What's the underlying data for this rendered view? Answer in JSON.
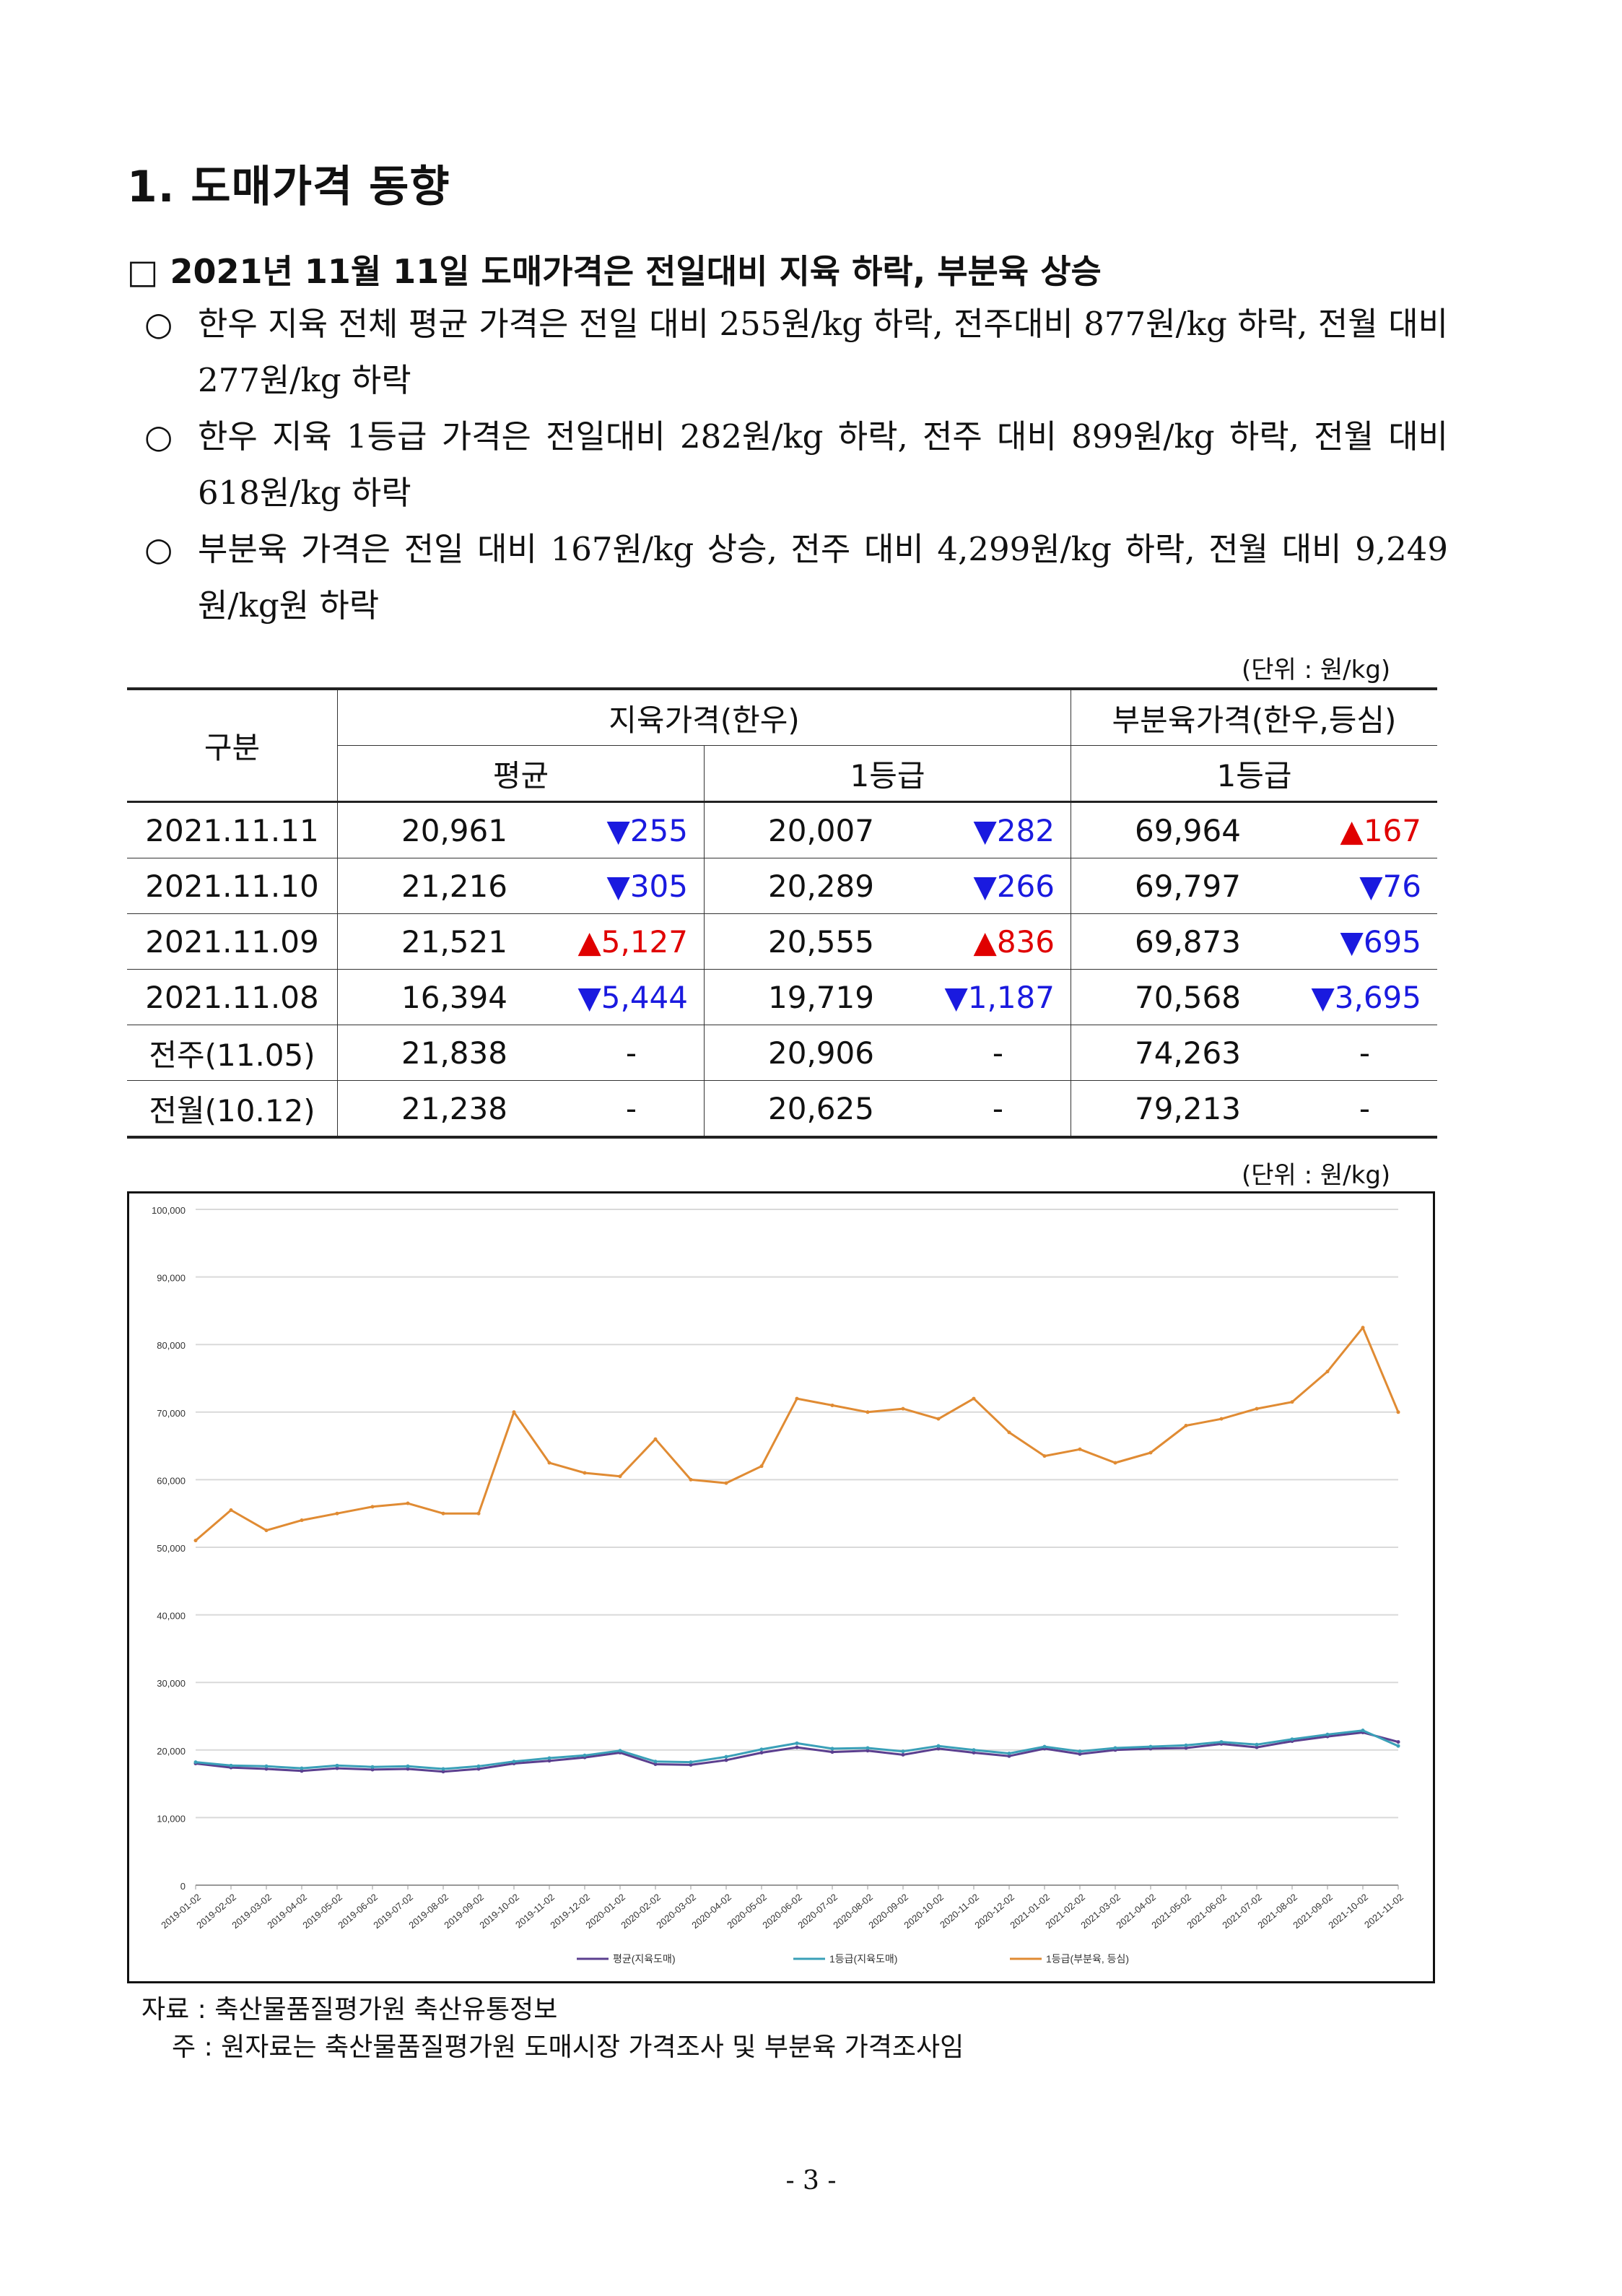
{
  "title": "1. 도매가격 동향",
  "headline": "□ 2021년 11월 11일 도매가격은 전일대비 지육 하락, 부분육 상승",
  "bullets": [
    {
      "mark": "○",
      "text": "한우 지육 전체 평균 가격은 전일 대비 255원/kg 하락, 전주대비 877원/kg 하락, 전월 대비 277원/kg 하락"
    },
    {
      "mark": "○",
      "text": "한우 지육 1등급 가격은 전일대비 282원/kg 하락, 전주 대비 899원/kg 하락, 전월 대비 618원/kg 하락"
    },
    {
      "mark": "○",
      "text": "부분육 가격은 전일 대비 167원/kg 상승, 전주 대비 4,299원/kg 하락, 전월 대비 9,249원/kg원 하락"
    }
  ],
  "table": {
    "unit": "(단위 : 원/kg)",
    "col_group_label": "구분",
    "group1": "지육가격(한우)",
    "group2": "부분육가격(한우,등심)",
    "sub1": "평균",
    "sub2": "1등급",
    "sub3": "1등급",
    "rows": [
      {
        "label": "2021.11.11",
        "avg": "20,961",
        "avg_chg": "▼255",
        "avg_dir": "down",
        "g1": "20,007",
        "g1_chg": "▼282",
        "g1_dir": "down",
        "part": "69,964",
        "part_chg": "▲167",
        "part_dir": "up"
      },
      {
        "label": "2021.11.10",
        "avg": "21,216",
        "avg_chg": "▼305",
        "avg_dir": "down",
        "g1": "20,289",
        "g1_chg": "▼266",
        "g1_dir": "down",
        "part": "69,797",
        "part_chg": "▼76",
        "part_dir": "down"
      },
      {
        "label": "2021.11.09",
        "avg": "21,521",
        "avg_chg": "▲5,127",
        "avg_dir": "up",
        "g1": "20,555",
        "g1_chg": "▲836",
        "g1_dir": "up",
        "part": "69,873",
        "part_chg": "▼695",
        "part_dir": "down"
      },
      {
        "label": "2021.11.08",
        "avg": "16,394",
        "avg_chg": "▼5,444",
        "avg_dir": "down",
        "g1": "19,719",
        "g1_chg": "▼1,187",
        "g1_dir": "down",
        "part": "70,568",
        "part_chg": "▼3,695",
        "part_dir": "down"
      },
      {
        "label": "전주(11.05)",
        "avg": "21,838",
        "avg_chg": "-",
        "avg_dir": "none",
        "g1": "20,906",
        "g1_chg": "-",
        "g1_dir": "none",
        "part": "74,263",
        "part_chg": "-",
        "part_dir": "none"
      },
      {
        "label": "전월(10.12)",
        "avg": "21,238",
        "avg_chg": "-",
        "avg_dir": "none",
        "g1": "20,625",
        "g1_chg": "-",
        "g1_dir": "none",
        "part": "79,213",
        "part_chg": "-",
        "part_dir": "none"
      }
    ]
  },
  "chart_unit": "(단위 : 원/kg)",
  "chart_data": {
    "type": "line",
    "title": "",
    "xlabel": "",
    "ylabel": "",
    "ylim": [
      0,
      100000
    ],
    "yticks": [
      "0",
      "10,000",
      "20,000",
      "30,000",
      "40,000",
      "50,000",
      "60,000",
      "70,000",
      "80,000",
      "90,000",
      "100,000"
    ],
    "grid": true,
    "legend": "bottom",
    "x": [
      "2019-01-02",
      "2019-02-02",
      "2019-03-02",
      "2019-04-02",
      "2019-05-02",
      "2019-06-02",
      "2019-07-02",
      "2019-08-02",
      "2019-09-02",
      "2019-10-02",
      "2019-11-02",
      "2019-12-02",
      "2020-01-02",
      "2020-02-02",
      "2020-03-02",
      "2020-04-02",
      "2020-05-02",
      "2020-06-02",
      "2020-07-02",
      "2020-08-02",
      "2020-09-02",
      "2020-10-02",
      "2020-11-02",
      "2020-12-02",
      "2021-01-02",
      "2021-02-02",
      "2021-03-02",
      "2021-04-02",
      "2021-05-02",
      "2021-06-02",
      "2021-07-02",
      "2021-08-02",
      "2021-09-02",
      "2021-10-02",
      "2021-11-02"
    ],
    "series": [
      {
        "name": "평균(지육도매)",
        "color": "#5b3f8f",
        "values": [
          18000,
          17400,
          17200,
          16900,
          17300,
          17100,
          17200,
          16800,
          17200,
          18000,
          18400,
          18900,
          19600,
          17900,
          17800,
          18500,
          19600,
          20400,
          19700,
          19900,
          19300,
          20200,
          19600,
          19100,
          20200,
          19400,
          20000,
          20200,
          20300,
          20900,
          20400,
          21300,
          22000,
          22600,
          21200
        ]
      },
      {
        "name": "1등급(지육도매)",
        "color": "#3aa0b8",
        "values": [
          18200,
          17700,
          17600,
          17300,
          17700,
          17500,
          17600,
          17200,
          17600,
          18300,
          18800,
          19200,
          19900,
          18300,
          18200,
          19000,
          20100,
          21000,
          20200,
          20300,
          19800,
          20600,
          20000,
          19500,
          20500,
          19800,
          20300,
          20500,
          20700,
          21200,
          20800,
          21600,
          22300,
          22900,
          20600
        ]
      },
      {
        "name": "1등급(부분육, 등심)",
        "color": "#e08b33",
        "values": [
          51000,
          55500,
          52500,
          54000,
          55000,
          56000,
          56500,
          55000,
          55000,
          70000,
          62500,
          61000,
          60500,
          66000,
          60000,
          59500,
          62000,
          72000,
          71000,
          70000,
          70500,
          69000,
          72000,
          67000,
          63500,
          64500,
          62500,
          64000,
          68000,
          69000,
          70500,
          71500,
          76000,
          82500,
          70000
        ]
      }
    ]
  },
  "source": "자료 : 축산물품질평가원 축산유통정보",
  "note": "주 : 원자료는 축산물품질평가원 도매시장 가격조사 및 부분육 가격조사임",
  "page_number": "- 3 -"
}
